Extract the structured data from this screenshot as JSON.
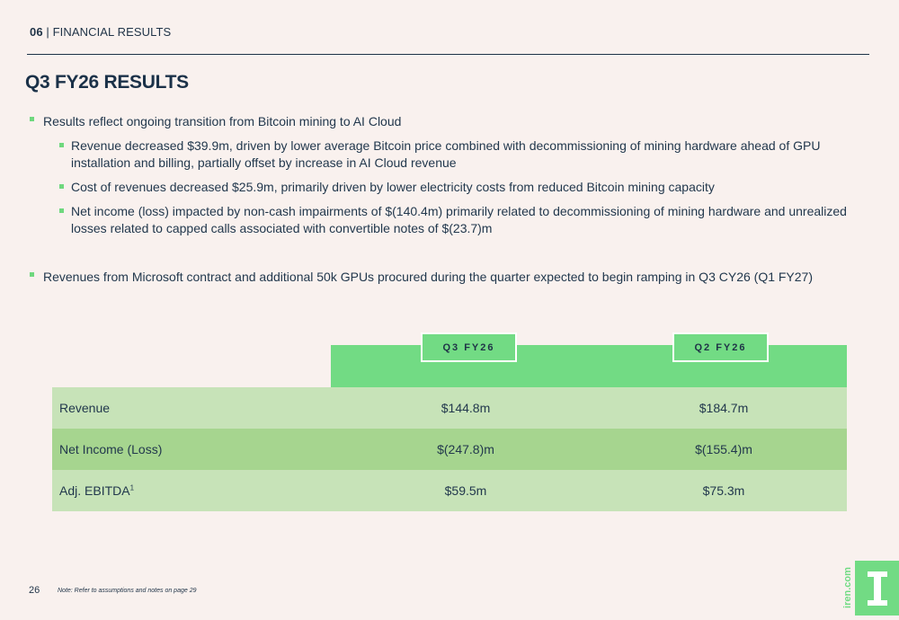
{
  "header": {
    "section_number": "06",
    "separator": " | ",
    "section_title": "FINANCIAL RESULTS"
  },
  "title": "Q3 FY26 RESULTS",
  "bullets": [
    {
      "text": "Results reflect ongoing transition from Bitcoin mining to AI Cloud",
      "sub": [
        "Revenue decreased $39.9m, driven by lower average Bitcoin price combined with decommissioning of mining hardware ahead of GPU installation and billing, partially offset by increase in AI Cloud revenue",
        "Cost of revenues decreased $25.9m, primarily driven by lower electricity costs from reduced Bitcoin mining capacity",
        "Net income (loss) impacted by non-cash impairments of $(140.4m) primarily related to decommissioning of mining hardware and unrealized losses related to capped calls associated with convertible notes of $(23.7)m"
      ]
    },
    {
      "text": "Revenues from Microsoft contract and additional 50k GPUs procured during the quarter expected to begin ramping in Q3 CY26 (Q1 FY27)"
    }
  ],
  "table": {
    "columns": [
      "Q3 FY26",
      "Q2 FY26"
    ],
    "rows": [
      {
        "label": "Revenue",
        "values": [
          "$144.8m",
          "$184.7m"
        ]
      },
      {
        "label": "Net Income (Loss)",
        "values": [
          "$(247.8)m",
          "$(155.4)m"
        ]
      },
      {
        "label": "Adj. EBITDA",
        "sup": "1",
        "values": [
          "$59.5m",
          "$75.3m"
        ]
      }
    ]
  },
  "footer": {
    "page_number": "26",
    "note": "Note: Refer to assumptions and notes on page 29",
    "brand_url": "iren.com",
    "logo_letter": "I"
  },
  "colors": {
    "accent_green": "#72db84",
    "row_light": "#c7e3b8",
    "row_dark": "#a6d58f",
    "navy": "#1f3347",
    "background": "#f9f1ee"
  }
}
